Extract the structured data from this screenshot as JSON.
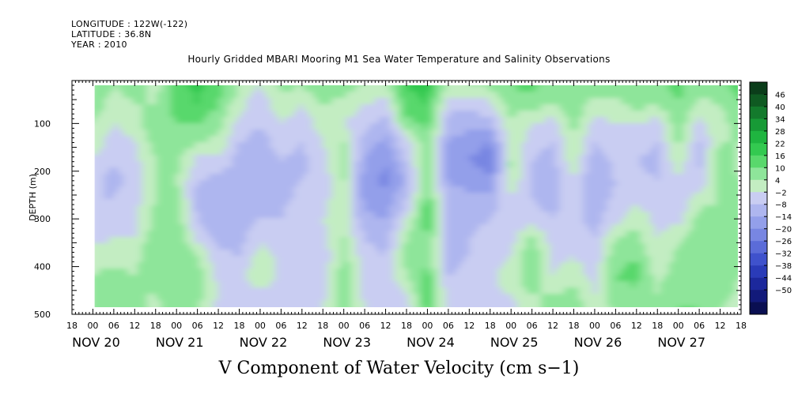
{
  "header": {
    "longitude": "LONGITUDE : 122W(-122)",
    "latitude": "LATITUDE : 36.8N",
    "year": "YEAR : 2010"
  },
  "chart_data": {
    "type": "heatmap",
    "title": "Hourly Gridded MBARI Mooring M1 Sea Water Temperature and Salinity Observations",
    "xlabel": "V Component of Water Velocity (cm s−1)",
    "ylabel": "DEPTH (m)",
    "xlim": [
      "2010-11-19T18:00",
      "2010-11-27T18:00"
    ],
    "ylim": [
      500,
      10
    ],
    "data_depth_range": [
      20,
      485
    ],
    "data_time_start": "2010-11-20T00:30",
    "y_ticks": [
      100,
      200,
      300,
      400,
      500
    ],
    "y_tick_labels": [
      "100",
      "200",
      "300",
      "400",
      "500"
    ],
    "x_hour_ticks": [
      "18",
      "00",
      "06",
      "12",
      "18",
      "00",
      "06",
      "12",
      "18",
      "00",
      "06",
      "12",
      "18",
      "00",
      "06",
      "12",
      "18",
      "00",
      "06",
      "12",
      "18",
      "00",
      "06",
      "12",
      "18",
      "00",
      "06",
      "12",
      "18",
      "00",
      "06",
      "12",
      "18"
    ],
    "x_day_labels": [
      {
        "label": "NOV 20",
        "at": "2010-11-20T00:00"
      },
      {
        "label": "NOV 21",
        "at": "2010-11-21T00:00"
      },
      {
        "label": "NOV 22",
        "at": "2010-11-22T00:00"
      },
      {
        "label": "NOV 23",
        "at": "2010-11-23T00:00"
      },
      {
        "label": "NOV 24",
        "at": "2010-11-24T00:00"
      },
      {
        "label": "NOV 25",
        "at": "2010-11-25T00:00"
      },
      {
        "label": "NOV 26",
        "at": "2010-11-26T00:00"
      },
      {
        "label": "NOV 27",
        "at": "2010-11-27T00:00"
      }
    ],
    "colorbar": {
      "levels": [
        46,
        40,
        34,
        28,
        22,
        16,
        10,
        4,
        -2,
        -8,
        -14,
        -20,
        -26,
        -32,
        -38,
        -44,
        -50
      ],
      "colors": [
        "#0b3d1a",
        "#0f5a22",
        "#137a2c",
        "#179a36",
        "#1fb540",
        "#33c950",
        "#59d86c",
        "#8ee59a",
        "#c3edc2",
        "#c9cdf2",
        "#aeb6ef",
        "#939fea",
        "#7886e2",
        "#5b6cd8",
        "#3f52cc",
        "#2a3bb8",
        "#1c289c",
        "#121a7a",
        "#0a0f52"
      ]
    },
    "profile_depths": [
      20,
      60,
      100,
      140,
      180,
      220,
      260,
      300,
      340,
      380,
      420,
      460,
      485
    ],
    "time_profiles": [
      {
        "t": "2010-11-20T00:30",
        "v": [
          8,
          6,
          4,
          2,
          -4,
          -6,
          -8,
          -6,
          -4,
          2,
          4,
          6,
          6
        ]
      },
      {
        "t": "2010-11-20T06:00",
        "v": [
          4,
          2,
          -2,
          -6,
          -8,
          -10,
          -8,
          -6,
          -2,
          2,
          6,
          8,
          8
        ]
      },
      {
        "t": "2010-11-20T12:00",
        "v": [
          6,
          4,
          2,
          -2,
          -4,
          -6,
          -4,
          -4,
          -2,
          2,
          4,
          4,
          6
        ]
      },
      {
        "t": "2010-11-20T18:00",
        "v": [
          2,
          4,
          8,
          6,
          4,
          4,
          4,
          6,
          8,
          10,
          6,
          4,
          2
        ]
      },
      {
        "t": "2010-11-21T00:00",
        "v": [
          14,
          12,
          10,
          8,
          6,
          4,
          6,
          8,
          10,
          10,
          8,
          8,
          8
        ]
      },
      {
        "t": "2010-11-21T06:00",
        "v": [
          18,
          16,
          10,
          4,
          -4,
          -8,
          -10,
          -8,
          -4,
          4,
          8,
          6,
          4
        ]
      },
      {
        "t": "2010-11-21T12:00",
        "v": [
          12,
          10,
          6,
          2,
          -4,
          -10,
          -12,
          -12,
          -10,
          -6,
          -4,
          -2,
          -4
        ]
      },
      {
        "t": "2010-11-21T18:00",
        "v": [
          4,
          0,
          -4,
          -8,
          -10,
          -12,
          -14,
          -12,
          -10,
          -8,
          -6,
          -6,
          -8
        ]
      },
      {
        "t": "2010-11-22T00:00",
        "v": [
          -2,
          -6,
          -8,
          -10,
          -12,
          -12,
          -10,
          -8,
          -4,
          2,
          4,
          -4,
          -8
        ]
      },
      {
        "t": "2010-11-22T06:00",
        "v": [
          6,
          2,
          -2,
          -6,
          -8,
          -10,
          -10,
          -8,
          -6,
          -4,
          -4,
          -6,
          -6
        ]
      },
      {
        "t": "2010-11-22T12:00",
        "v": [
          4,
          -2,
          -6,
          -8,
          -10,
          -8,
          -6,
          -4,
          -6,
          -8,
          -8,
          -6,
          -4
        ]
      },
      {
        "t": "2010-11-22T18:00",
        "v": [
          10,
          4,
          2,
          -2,
          -4,
          -6,
          -4,
          -2,
          -4,
          -6,
          -6,
          -4,
          -2
        ]
      },
      {
        "t": "2010-11-23T00:00",
        "v": [
          6,
          2,
          -2,
          4,
          6,
          4,
          2,
          2,
          4,
          6,
          8,
          10,
          8
        ]
      },
      {
        "t": "2010-11-23T06:00",
        "v": [
          4,
          -2,
          -6,
          -10,
          -14,
          -18,
          -16,
          -12,
          -8,
          -6,
          -4,
          -4,
          -2
        ]
      },
      {
        "t": "2010-11-23T12:00",
        "v": [
          2,
          -4,
          -10,
          -16,
          -20,
          -22,
          -18,
          -14,
          -10,
          -8,
          -6,
          -6,
          -4
        ]
      },
      {
        "t": "2010-11-23T18:00",
        "v": [
          16,
          14,
          8,
          -4,
          -8,
          -12,
          -8,
          -2,
          4,
          6,
          4,
          -2,
          -6
        ]
      },
      {
        "t": "2010-11-24T00:00",
        "v": [
          18,
          16,
          12,
          8,
          10,
          8,
          12,
          14,
          10,
          8,
          12,
          14,
          12
        ]
      },
      {
        "t": "2010-11-24T06:00",
        "v": [
          2,
          -6,
          -10,
          -14,
          -16,
          -14,
          -12,
          -10,
          -10,
          -10,
          -8,
          -6,
          -4
        ]
      },
      {
        "t": "2010-11-24T12:00",
        "v": [
          4,
          -6,
          -12,
          -18,
          -20,
          -16,
          -12,
          -10,
          -8,
          -8,
          -6,
          -4,
          -4
        ]
      },
      {
        "t": "2010-11-24T18:00",
        "v": [
          6,
          -4,
          -10,
          -20,
          -24,
          -18,
          -12,
          -8,
          -6,
          -6,
          -4,
          -4,
          -4
        ]
      },
      {
        "t": "2010-11-25T00:00",
        "v": [
          10,
          8,
          2,
          4,
          6,
          4,
          -4,
          -6,
          -4,
          -2,
          2,
          -2,
          -4
        ]
      },
      {
        "t": "2010-11-25T06:00",
        "v": [
          12,
          6,
          -2,
          -6,
          -8,
          -10,
          -8,
          -6,
          6,
          10,
          8,
          4,
          2
        ]
      },
      {
        "t": "2010-11-25T12:00",
        "v": [
          8,
          4,
          -4,
          -8,
          -10,
          -12,
          -10,
          -8,
          -6,
          -4,
          -2,
          4,
          6
        ]
      },
      {
        "t": "2010-11-25T18:00",
        "v": [
          10,
          8,
          6,
          4,
          2,
          -2,
          -4,
          -6,
          -4,
          -2,
          2,
          6,
          8
        ]
      },
      {
        "t": "2010-11-26T00:00",
        "v": [
          6,
          2,
          -4,
          -8,
          -12,
          -14,
          -12,
          -10,
          -8,
          -6,
          -4,
          -2,
          -2
        ]
      },
      {
        "t": "2010-11-26T06:00",
        "v": [
          8,
          2,
          -2,
          -4,
          -6,
          -8,
          -6,
          -4,
          4,
          8,
          10,
          8,
          6
        ]
      },
      {
        "t": "2010-11-26T12:00",
        "v": [
          10,
          6,
          -2,
          -6,
          -8,
          -6,
          -4,
          2,
          6,
          10,
          12,
          8,
          6
        ]
      },
      {
        "t": "2010-11-26T18:00",
        "v": [
          8,
          4,
          -4,
          -8,
          -10,
          -8,
          -6,
          -4,
          -2,
          -2,
          2,
          4,
          4
        ]
      },
      {
        "t": "2010-11-27T00:00",
        "v": [
          12,
          10,
          8,
          6,
          2,
          -4,
          -6,
          -4,
          2,
          6,
          8,
          10,
          10
        ]
      },
      {
        "t": "2010-11-27T06:00",
        "v": [
          6,
          2,
          -4,
          -8,
          -10,
          -6,
          2,
          6,
          8,
          6,
          4,
          8,
          10
        ]
      },
      {
        "t": "2010-11-27T12:00",
        "v": [
          8,
          4,
          2,
          4,
          8,
          6,
          4,
          6,
          8,
          10,
          8,
          6,
          4
        ]
      },
      {
        "t": "2010-11-27T18:00",
        "v": [
          14,
          10,
          6,
          4,
          2,
          4,
          8,
          10,
          8,
          6,
          4,
          2,
          2
        ]
      }
    ],
    "grid": false,
    "legend": "right"
  }
}
